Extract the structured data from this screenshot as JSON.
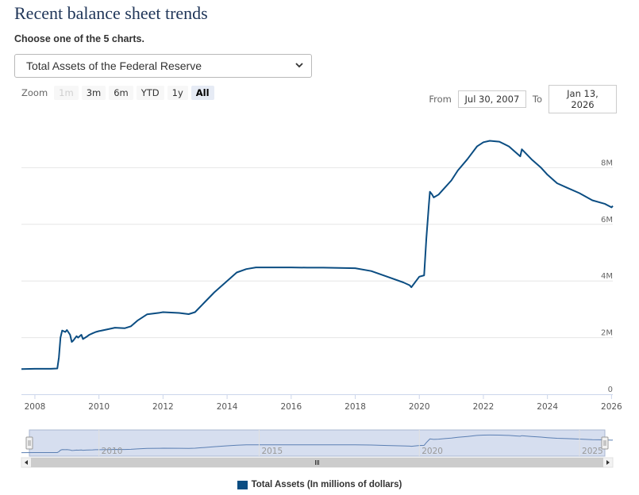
{
  "page": {
    "title": "Recent balance sheet trends",
    "subtitle": "Choose one of the 5 charts."
  },
  "selector": {
    "selected": "Total Assets of the Federal Reserve"
  },
  "zoom": {
    "label": "Zoom",
    "buttons": [
      "1m",
      "3m",
      "6m",
      "YTD",
      "1y",
      "All"
    ],
    "active": "All",
    "disabled": "1m"
  },
  "range": {
    "from_label": "From",
    "from_value": "Jul 30, 2007",
    "to_label": "To",
    "to_value": "Jan 13, 2026"
  },
  "colors": {
    "series": "#0b4d82",
    "navigator_fill": "#d6deef",
    "grid": "#e6e6e6"
  },
  "chart_data": {
    "type": "line",
    "title": "",
    "xlabel": "",
    "ylabel": "",
    "xlim": [
      2007.58,
      2026.04
    ],
    "ylim": [
      0,
      9
    ],
    "x_ticks": [
      "2008",
      "2010",
      "2012",
      "2014",
      "2016",
      "2018",
      "2020",
      "2022",
      "2024",
      "2026"
    ],
    "y_ticks": [
      "0",
      "2M",
      "4M",
      "6M",
      "8M"
    ],
    "grid": true,
    "legend_position": "bottom",
    "navigator_ticks": [
      "2010",
      "2015",
      "2020",
      "2025"
    ],
    "series": [
      {
        "name": "Total Assets (In millions of dollars)",
        "x": [
          2007.58,
          2008.0,
          2008.5,
          2008.7,
          2008.75,
          2008.8,
          2008.85,
          2008.95,
          2009.0,
          2009.1,
          2009.15,
          2009.2,
          2009.3,
          2009.35,
          2009.45,
          2009.5,
          2009.6,
          2009.7,
          2009.8,
          2009.9,
          2010.0,
          2010.3,
          2010.5,
          2010.8,
          2011.0,
          2011.2,
          2011.5,
          2011.9,
          2012.0,
          2012.5,
          2012.8,
          2013.0,
          2013.3,
          2013.6,
          2014.0,
          2014.3,
          2014.6,
          2014.9,
          2015.2,
          2015.5,
          2016.0,
          2016.5,
          2017.0,
          2017.5,
          2018.0,
          2018.5,
          2019.0,
          2019.5,
          2019.7,
          2019.75,
          2020.0,
          2020.15,
          2020.22,
          2020.3,
          2020.33,
          2020.4,
          2020.45,
          2020.6,
          2020.8,
          2021.0,
          2021.2,
          2021.5,
          2021.8,
          2022.0,
          2022.2,
          2022.5,
          2022.8,
          2023.0,
          2023.15,
          2023.2,
          2023.5,
          2023.8,
          2024.0,
          2024.3,
          2024.6,
          2025.0,
          2025.4,
          2025.8,
          2026.0,
          2026.04
        ],
        "y": [
          0.89,
          0.9,
          0.9,
          0.91,
          1.3,
          2.0,
          2.25,
          2.2,
          2.27,
          2.1,
          1.85,
          1.9,
          2.05,
          2.0,
          2.1,
          1.95,
          2.02,
          2.1,
          2.15,
          2.2,
          2.23,
          2.3,
          2.35,
          2.33,
          2.4,
          2.6,
          2.82,
          2.88,
          2.9,
          2.87,
          2.83,
          2.9,
          3.25,
          3.6,
          4.0,
          4.3,
          4.42,
          4.48,
          4.48,
          4.48,
          4.48,
          4.47,
          4.47,
          4.46,
          4.45,
          4.35,
          4.15,
          3.95,
          3.85,
          3.78,
          4.15,
          4.2,
          5.5,
          6.7,
          7.15,
          7.05,
          6.95,
          7.05,
          7.3,
          7.55,
          7.9,
          8.3,
          8.75,
          8.9,
          8.95,
          8.92,
          8.75,
          8.55,
          8.4,
          8.65,
          8.3,
          8.0,
          7.75,
          7.45,
          7.3,
          7.1,
          6.85,
          6.72,
          6.6,
          6.65
        ]
      }
    ]
  }
}
